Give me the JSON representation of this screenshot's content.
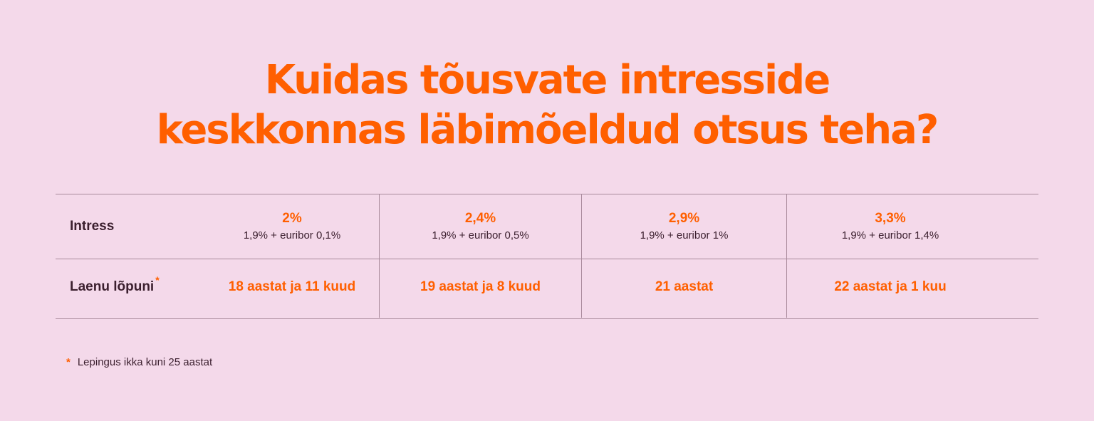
{
  "headline": {
    "line1": "Kuidas tõusvate intresside",
    "line2": "keskkonnas läbimõeldud otsus teha?"
  },
  "table": {
    "rows": {
      "rate_label": "Intress",
      "end_label": "Laenu lõpuni",
      "end_marker": "*"
    },
    "columns": [
      {
        "rate": "2%",
        "formula": "1,9% + euribor 0,1%",
        "end": "18 aastat ja 11 kuud"
      },
      {
        "rate": "2,4%",
        "formula": "1,9% + euribor 0,5%",
        "end": "19 aastat ja 8 kuud"
      },
      {
        "rate": "2,9%",
        "formula": "1,9% + euribor 1%",
        "end": "21 aastat"
      },
      {
        "rate": "3,3%",
        "formula": "1,9% + euribor 1,4%",
        "end": "22 aastat ja 1 kuu"
      }
    ]
  },
  "footnote": {
    "marker": "*",
    "text": "Lepingus ikka kuni 25 aastat"
  },
  "colors": {
    "background": "#f4d9ea",
    "accent": "#ff5f00",
    "text": "#3b1f2e",
    "rule": "#a98a9c"
  }
}
